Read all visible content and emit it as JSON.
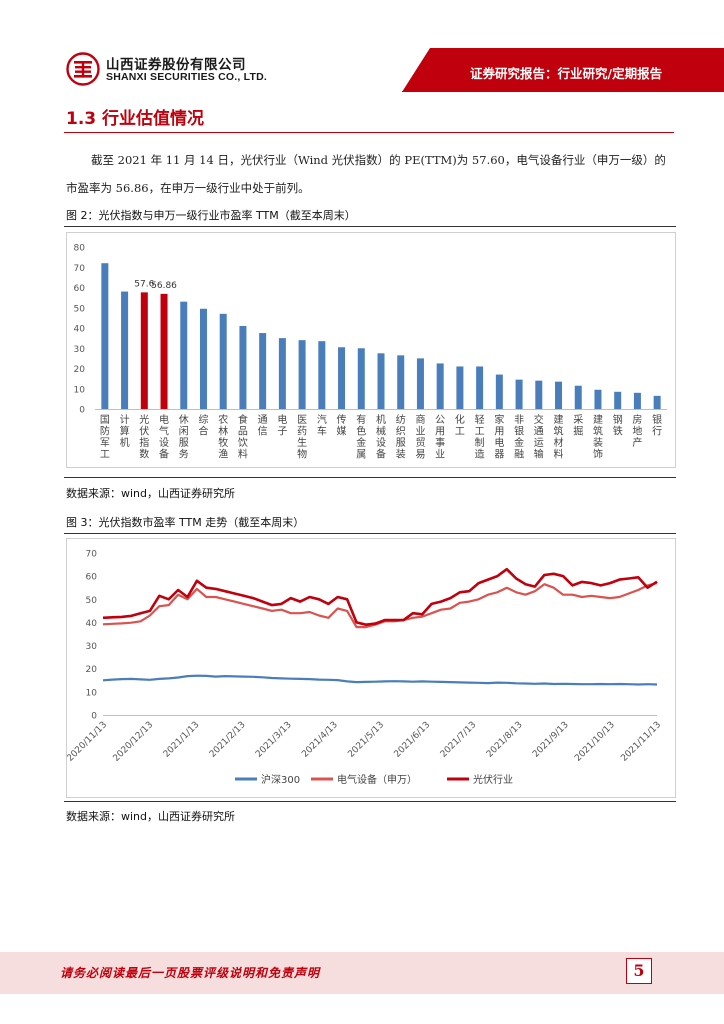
{
  "header": {
    "company_cn": "山西证券股份有限公司",
    "company_en": "SHANXI SECURITIES CO., LTD.",
    "report_type": "证券研究报告：行业研究/定期报告",
    "brand_color": "#c0000c"
  },
  "section": {
    "title": "1.3 行业估值情况",
    "paragraph": "截至 2021 年 11 月 14 日，光伏行业（Wind 光伏指数）的 PE(TTM)为 57.60，电气设备行业（申万一级）的市盈率为 56.86，在申万一级行业中处于前列。"
  },
  "figure2": {
    "caption": "图 2：光伏指数与申万一级行业市盈率 TTM（截至本周末）",
    "source": "数据来源：wind，山西证券研究所"
  },
  "figure3": {
    "caption": "图 3：光伏指数市盈率 TTM 走势（截至本周末）",
    "source": "数据来源：wind，山西证券研究所"
  },
  "footer": {
    "disclaimer": "请务必阅读最后一页股票评级说明和免责声明",
    "page_number": "5"
  },
  "chart_data": [
    {
      "type": "bar",
      "title": "",
      "ylim": [
        0,
        80
      ],
      "yticks": [
        0,
        10,
        20,
        30,
        40,
        50,
        60,
        70,
        80
      ],
      "grid": false,
      "categories": [
        "国防军工",
        "计算机",
        "光伏指数",
        "电气设备",
        "休闲服务",
        "综合",
        "农林牧渔",
        "食品饮料",
        "通信",
        "电子",
        "医药生物",
        "汽车",
        "传媒",
        "有色金属",
        "机械设备",
        "纺织服装",
        "商业贸易",
        "公用事业",
        "化工",
        "轻工制造",
        "家用电器",
        "非银金融",
        "交通运输",
        "建筑材料",
        "采掘",
        "建筑装饰",
        "钢铁",
        "房地产",
        "银行"
      ],
      "values": [
        72.0,
        58.0,
        57.6,
        56.86,
        53.0,
        49.5,
        47.0,
        41.0,
        37.5,
        35.0,
        34.0,
        33.5,
        30.5,
        30.0,
        27.5,
        26.5,
        25.0,
        22.5,
        21.0,
        21.0,
        17.0,
        14.5,
        14.0,
        13.5,
        11.5,
        9.5,
        8.5,
        8.0,
        6.5
      ],
      "data_labels": {
        "2": "57.6",
        "3": "56.86"
      },
      "colors": {
        "default": "#4a7ebb",
        "highlight": "#c0000c"
      },
      "highlight_indices": [
        2,
        3
      ]
    },
    {
      "type": "line",
      "title": "",
      "ylim": [
        0,
        70
      ],
      "yticks": [
        0,
        10,
        20,
        30,
        40,
        50,
        60,
        70
      ],
      "grid": false,
      "legend_position": "bottom",
      "x_tick_labels": [
        "2020/11/13",
        "2020/12/13",
        "2021/1/13",
        "2021/2/13",
        "2021/3/13",
        "2021/4/13",
        "2021/5/13",
        "2021/6/13",
        "2021/7/13",
        "2021/8/13",
        "2021/9/13",
        "2021/10/13",
        "2021/11/13"
      ],
      "series": [
        {
          "name": "沪深300",
          "color": "#4a7ebb",
          "width": 2.2,
          "values": [
            15.0,
            15.3,
            15.5,
            15.6,
            15.4,
            15.2,
            15.6,
            15.8,
            16.2,
            16.8,
            17.0,
            16.9,
            16.6,
            16.8,
            16.7,
            16.6,
            16.5,
            16.3,
            16.0,
            15.8,
            15.7,
            15.6,
            15.5,
            15.3,
            15.2,
            15.1,
            14.5,
            14.2,
            14.3,
            14.4,
            14.5,
            14.6,
            14.5,
            14.4,
            14.5,
            14.4,
            14.3,
            14.2,
            14.1,
            14.0,
            13.9,
            13.8,
            14.0,
            13.9,
            13.7,
            13.6,
            13.5,
            13.6,
            13.4,
            13.5,
            13.4,
            13.3,
            13.3,
            13.4,
            13.3,
            13.4,
            13.3,
            13.2,
            13.3,
            13.2
          ]
        },
        {
          "name": "电气设备（申万）",
          "color": "#d9534f",
          "width": 2.2,
          "values": [
            39.2,
            39.4,
            39.6,
            39.9,
            40.5,
            43.0,
            47.0,
            47.5,
            52.0,
            50.0,
            54.5,
            51.0,
            51.0,
            50.0,
            49.0,
            48.0,
            47.0,
            46.0,
            45.0,
            45.5,
            44.0,
            44.0,
            44.5,
            43.0,
            42.0,
            46.0,
            45.0,
            38.0,
            38.0,
            39.0,
            40.5,
            40.5,
            41.0,
            42.0,
            42.5,
            44.0,
            45.5,
            46.0,
            48.5,
            49.0,
            50.0,
            52.0,
            53.0,
            55.0,
            53.0,
            52.0,
            53.5,
            56.5,
            55.0,
            52.0,
            52.0,
            51.0,
            51.5,
            51.0,
            50.5,
            51.0,
            52.5,
            54.0,
            56.0,
            57.0
          ]
        },
        {
          "name": "光伏行业",
          "color": "#c0000c",
          "width": 2.6,
          "values": [
            42.0,
            42.2,
            42.4,
            42.8,
            44.0,
            45.0,
            51.5,
            50.0,
            54.0,
            51.0,
            58.0,
            55.0,
            54.5,
            53.5,
            52.5,
            51.5,
            50.5,
            49.0,
            47.5,
            48.0,
            50.5,
            49.0,
            51.0,
            50.0,
            48.0,
            51.0,
            50.0,
            40.0,
            39.0,
            39.5,
            41.0,
            41.0,
            41.0,
            44.0,
            43.5,
            48.0,
            49.0,
            50.5,
            53.0,
            53.5,
            57.0,
            58.5,
            60.0,
            63.0,
            59.0,
            56.5,
            55.5,
            60.5,
            61.0,
            60.0,
            56.0,
            57.5,
            57.0,
            56.0,
            57.0,
            58.5,
            59.0,
            59.5,
            55.0,
            57.6
          ]
        }
      ]
    }
  ]
}
